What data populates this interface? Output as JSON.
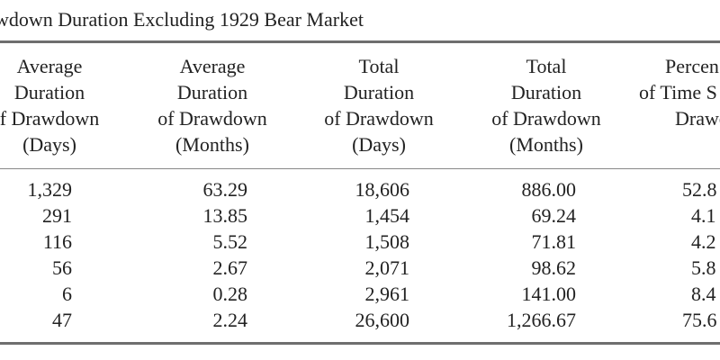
{
  "table": {
    "caption": "wdown Duration Excluding 1929 Bear Market",
    "headers": [
      [
        "Average",
        "Duration",
        "f Drawdown",
        "(Days)"
      ],
      [
        "Average",
        "Duration",
        "of Drawdown",
        "(Months)"
      ],
      [
        "Total",
        "Duration",
        "of Drawdown",
        "(Days)"
      ],
      [
        "Total",
        "Duration",
        "of Drawdown",
        "(Months)"
      ],
      [
        "Percen",
        "of Time S",
        "Drawd",
        ""
      ]
    ],
    "columns": [
      [
        "1,329",
        "291",
        "116",
        "56",
        "6",
        "47"
      ],
      [
        "63.29",
        "13.85",
        "5.52",
        "2.67",
        "0.28",
        "2.24"
      ],
      [
        "18,606",
        "1,454",
        "1,508",
        "2,071",
        "2,961",
        "26,600"
      ],
      [
        "886.00",
        "69.24",
        "71.81",
        "98.62",
        "141.00",
        "1,266.67"
      ],
      [
        "52.8",
        "4.1",
        "4.2",
        "5.8",
        "8.4",
        "75.6"
      ]
    ]
  }
}
